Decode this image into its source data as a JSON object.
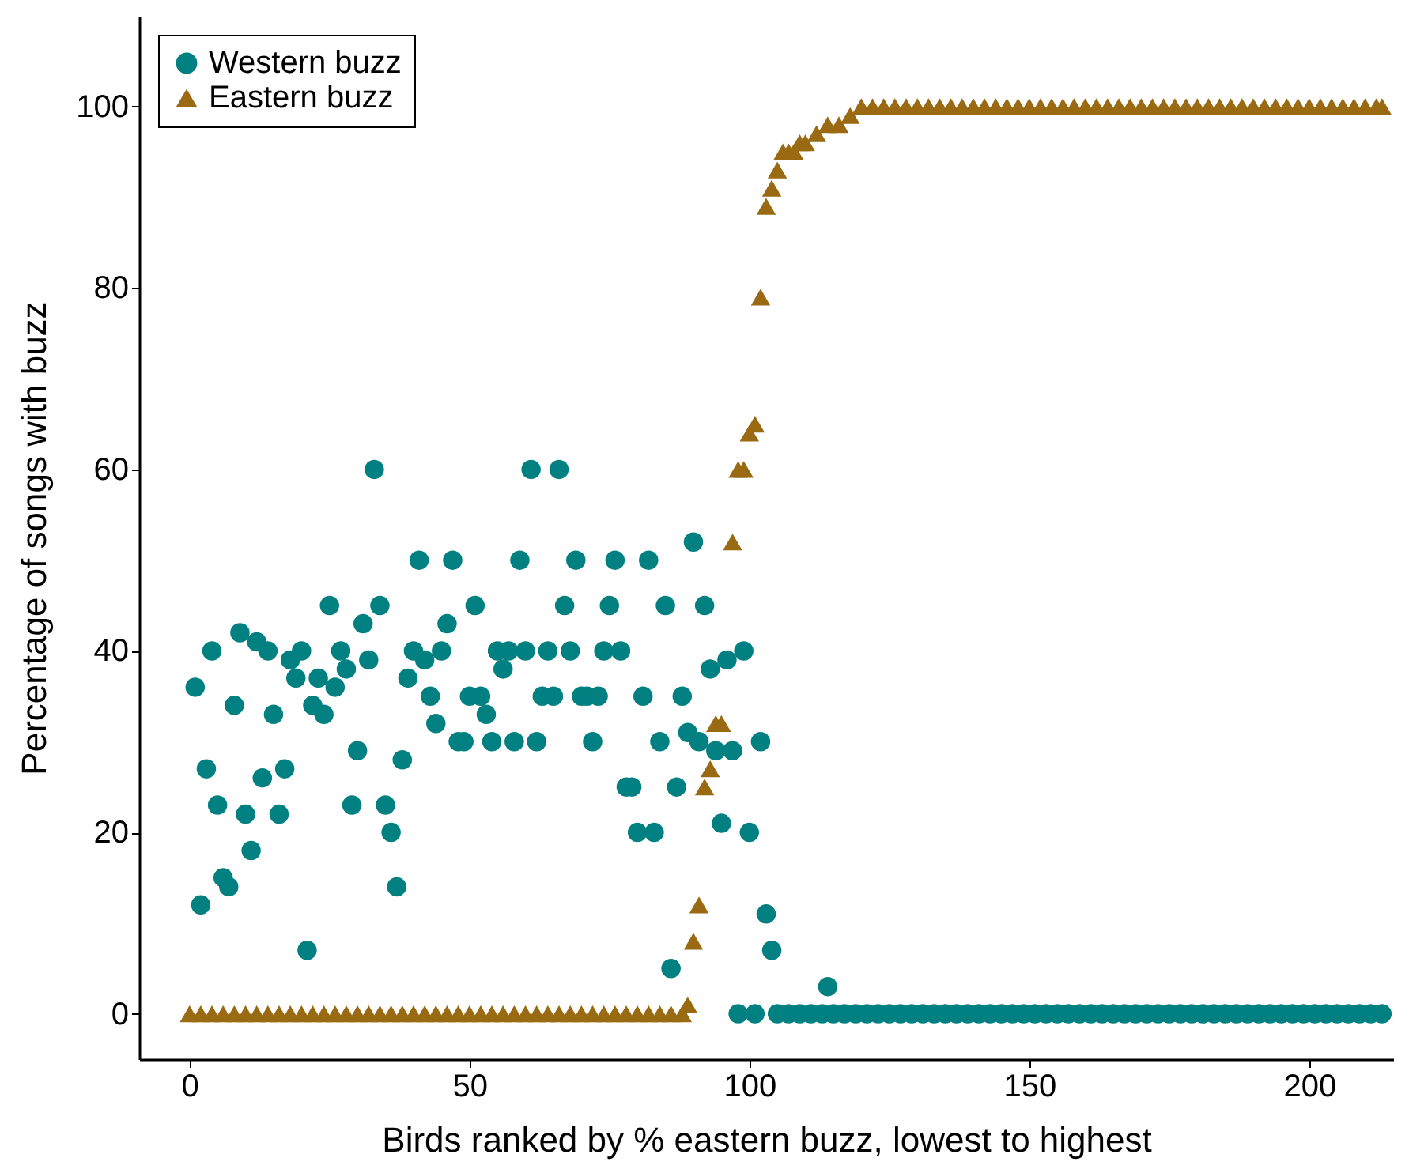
{
  "chart_data": {
    "type": "scatter",
    "xlabel": "Birds ranked by % eastern buzz, lowest to highest",
    "ylabel": "Percentage of songs with buzz",
    "xlim": [
      -9,
      215
    ],
    "ylim": [
      -5,
      110
    ],
    "xticks": [
      0,
      50,
      100,
      150,
      200
    ],
    "yticks": [
      0,
      20,
      40,
      60,
      80,
      100
    ],
    "legend": "top left",
    "grid": false,
    "series": [
      {
        "name": "Western buzz",
        "color": "#008080",
        "marker": "circle",
        "x": [
          1,
          2,
          3,
          4,
          5,
          6,
          7,
          8,
          9,
          10,
          11,
          12,
          13,
          14,
          15,
          16,
          17,
          18,
          19,
          20,
          21,
          22,
          23,
          24,
          25,
          26,
          27,
          28,
          29,
          30,
          31,
          32,
          33,
          34,
          35,
          36,
          37,
          38,
          39,
          40,
          41,
          42,
          43,
          44,
          45,
          46,
          47,
          48,
          49,
          50,
          51,
          52,
          53,
          54,
          55,
          56,
          57,
          58,
          59,
          60,
          61,
          62,
          63,
          64,
          65,
          66,
          67,
          68,
          69,
          70,
          71,
          72,
          73,
          74,
          75,
          76,
          77,
          78,
          79,
          80,
          81,
          82,
          83,
          84,
          85,
          86,
          87,
          88,
          89,
          90,
          91,
          92,
          93,
          94,
          95,
          96,
          97,
          98,
          99,
          100,
          101,
          102,
          103,
          104,
          105,
          107,
          109,
          111,
          113,
          115,
          117,
          119,
          121,
          123,
          125,
          127,
          129,
          131,
          133,
          135,
          137,
          139,
          141,
          143,
          145,
          147,
          149,
          151,
          153,
          155,
          157,
          159,
          161,
          163,
          165,
          167,
          169,
          171,
          173,
          175,
          177,
          179,
          181,
          183,
          185,
          187,
          189,
          191,
          193,
          195,
          197,
          199,
          201,
          203,
          205,
          207,
          209,
          211,
          213,
          114
        ],
        "values": [
          36,
          12,
          27,
          40,
          23,
          15,
          14,
          34,
          42,
          22,
          18,
          41,
          26,
          40,
          33,
          22,
          27,
          39,
          37,
          40,
          7,
          34,
          37,
          33,
          45,
          36,
          40,
          38,
          23,
          29,
          43,
          39,
          60,
          45,
          23,
          20,
          14,
          28,
          37,
          40,
          50,
          39,
          35,
          32,
          40,
          43,
          50,
          30,
          30,
          35,
          45,
          35,
          33,
          30,
          40,
          38,
          40,
          30,
          50,
          40,
          60,
          30,
          35,
          40,
          35,
          60,
          45,
          40,
          50,
          35,
          35,
          30,
          35,
          40,
          45,
          50,
          40,
          25,
          25,
          20,
          35,
          50,
          20,
          30,
          45,
          5,
          25,
          35,
          31,
          52,
          30,
          45,
          38,
          29,
          21,
          39,
          29,
          0,
          40,
          20,
          0,
          30,
          11,
          7,
          0,
          0,
          0,
          0,
          0,
          0,
          0,
          0,
          0,
          0,
          0,
          0,
          0,
          0,
          0,
          0,
          0,
          0,
          0,
          0,
          0,
          0,
          0,
          0,
          0,
          0,
          0,
          0,
          0,
          0,
          0,
          0,
          0,
          0,
          0,
          0,
          0,
          0,
          0,
          0,
          0,
          0,
          0,
          0,
          0,
          0,
          0,
          0,
          0,
          0,
          0,
          0,
          0,
          0,
          0,
          3
        ]
      },
      {
        "name": "Eastern buzz",
        "color": "#9a6a12",
        "marker": "triangle",
        "x": [
          0,
          2,
          4,
          6,
          8,
          10,
          12,
          14,
          16,
          18,
          20,
          22,
          24,
          26,
          28,
          30,
          32,
          34,
          36,
          38,
          40,
          42,
          44,
          46,
          48,
          50,
          52,
          54,
          56,
          58,
          60,
          62,
          64,
          66,
          68,
          70,
          72,
          74,
          76,
          78,
          80,
          82,
          84,
          86,
          88,
          89,
          90,
          91,
          92,
          93,
          94,
          95,
          97,
          98,
          99,
          100,
          101,
          102,
          103,
          104,
          105,
          106,
          107,
          108,
          109,
          110,
          112,
          114,
          116,
          118,
          120,
          122,
          124,
          126,
          128,
          130,
          132,
          134,
          136,
          138,
          140,
          142,
          144,
          146,
          148,
          150,
          152,
          154,
          156,
          158,
          160,
          162,
          164,
          166,
          168,
          170,
          172,
          174,
          176,
          178,
          180,
          182,
          184,
          186,
          188,
          190,
          192,
          194,
          196,
          198,
          200,
          202,
          204,
          206,
          208,
          210,
          212,
          213
        ],
        "values": [
          0,
          0,
          0,
          0,
          0,
          0,
          0,
          0,
          0,
          0,
          0,
          0,
          0,
          0,
          0,
          0,
          0,
          0,
          0,
          0,
          0,
          0,
          0,
          0,
          0,
          0,
          0,
          0,
          0,
          0,
          0,
          0,
          0,
          0,
          0,
          0,
          0,
          0,
          0,
          0,
          0,
          0,
          0,
          0,
          0,
          1,
          8,
          12,
          25,
          27,
          32,
          32,
          52,
          60,
          60,
          64,
          65,
          79,
          89,
          91,
          93,
          95,
          95,
          95,
          96,
          96,
          97,
          98,
          98,
          99,
          100,
          100,
          100,
          100,
          100,
          100,
          100,
          100,
          100,
          100,
          100,
          100,
          100,
          100,
          100,
          100,
          100,
          100,
          100,
          100,
          100,
          100,
          100,
          100,
          100,
          100,
          100,
          100,
          100,
          100,
          100,
          100,
          100,
          100,
          100,
          100,
          100,
          100,
          100,
          100,
          100,
          100,
          100,
          100,
          100,
          100,
          100,
          100
        ]
      }
    ]
  }
}
